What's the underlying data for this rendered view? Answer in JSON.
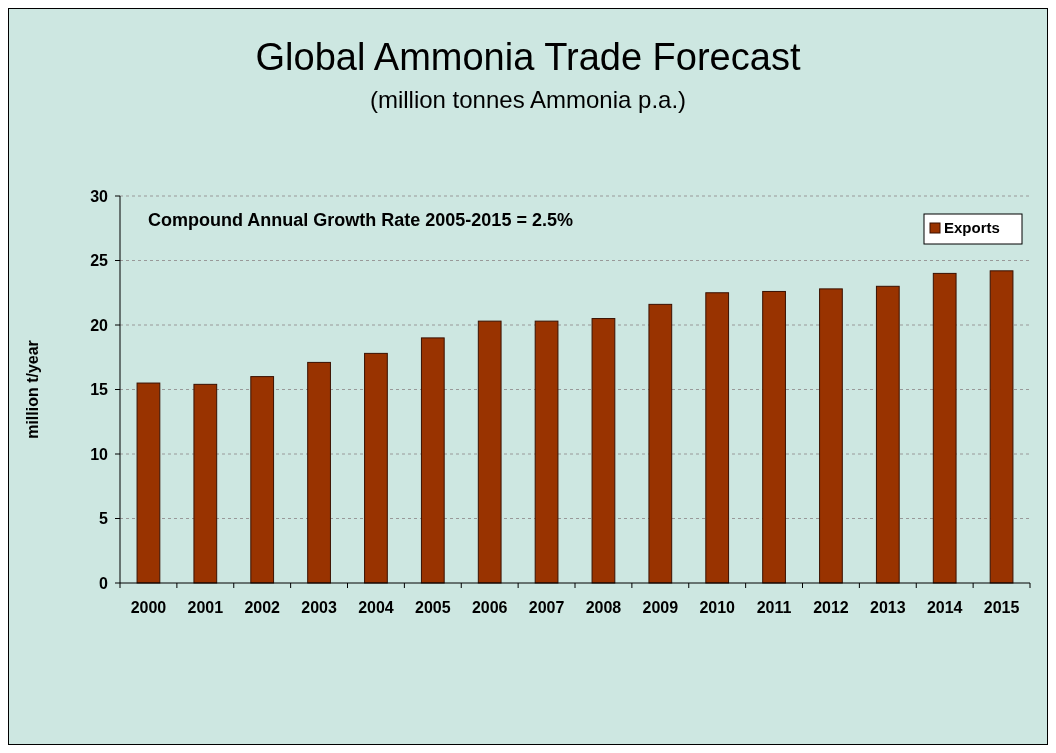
{
  "chart_data": {
    "type": "bar",
    "title": "Global Ammonia Trade Forecast",
    "subtitle": "(million tonnes Ammonia p.a.)",
    "ylabel": "million t/year",
    "categories": [
      "2000",
      "2001",
      "2002",
      "2003",
      "2004",
      "2005",
      "2006",
      "2007",
      "2008",
      "2009",
      "2010",
      "2011",
      "2012",
      "2013",
      "2014",
      "2015"
    ],
    "series": [
      {
        "name": "Exports",
        "color": "#993300",
        "values": [
          15.5,
          15.4,
          16.0,
          17.1,
          17.8,
          19.0,
          20.3,
          20.3,
          20.5,
          21.6,
          22.5,
          22.6,
          22.8,
          23.0,
          24.0,
          24.2
        ]
      }
    ],
    "annotations": [
      "Compound Annual Growth Rate 2005-2015 = 2.5%"
    ],
    "ylim": [
      0,
      30
    ],
    "yticks": [
      0,
      5,
      10,
      15,
      20,
      25,
      30
    ],
    "grid": "y",
    "legend": "top right"
  }
}
